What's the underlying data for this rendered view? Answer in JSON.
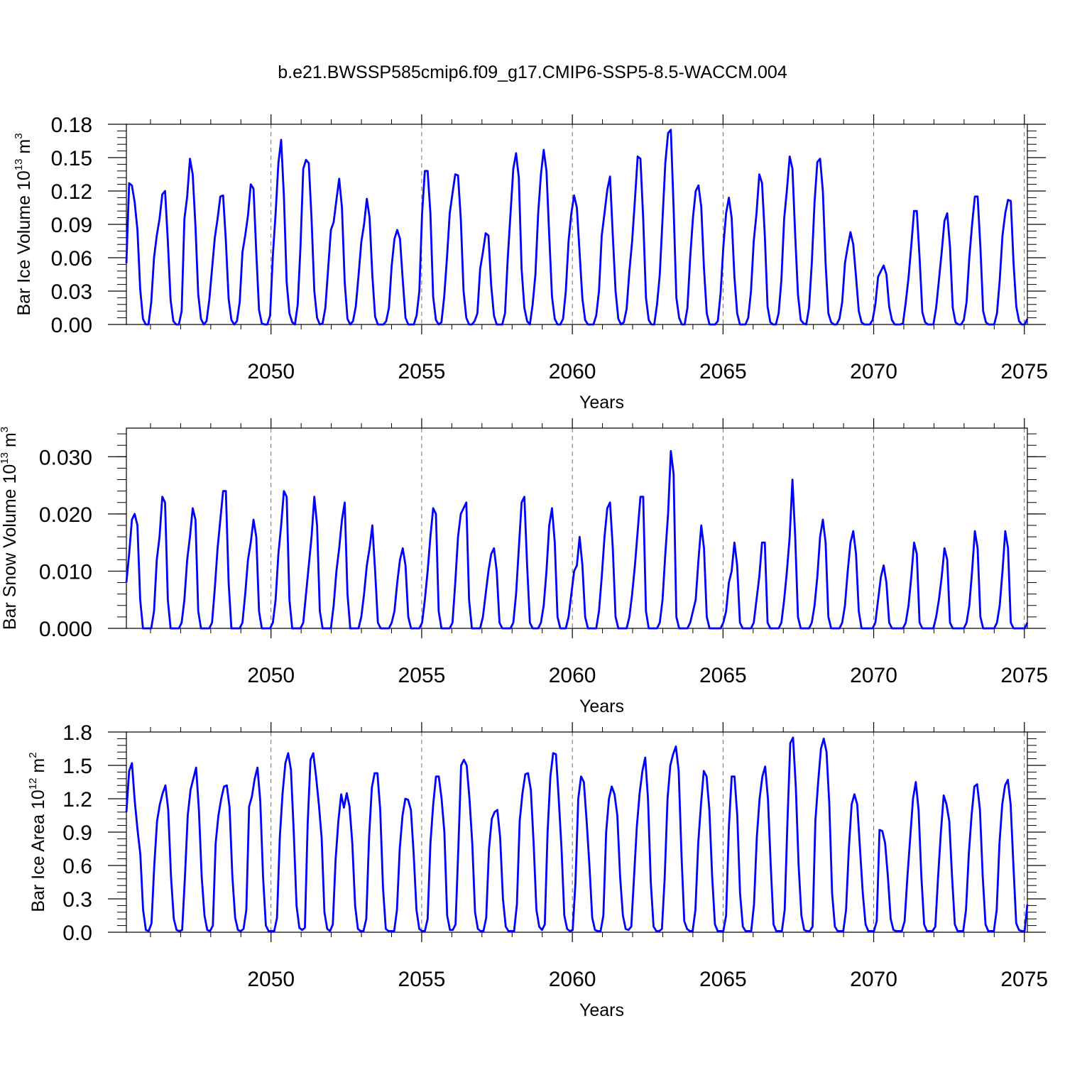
{
  "chart_data": {
    "title": "b.e21.BWSSP585cmip6.f09_g17.CMIP6-SSP5-8.5-WACCM.004",
    "type": "line",
    "x_start": 2045.2,
    "x_end": 2075.1,
    "xlim": [
      2045.2,
      2075.1
    ],
    "x_ticks": [
      "2050",
      "2055",
      "2060",
      "2065",
      "2070",
      "2075"
    ],
    "line_color": "#0000ff",
    "panels": [
      {
        "ylabel": "Bar Ice Volume 10",
        "ylabel_exp": "13",
        "ylabel_unit": " m",
        "ylabel_unit_exp": "3",
        "xlabel": "Years",
        "ylim": [
          0,
          0.18
        ],
        "y_ticks": [
          "0.00",
          "0.03",
          "0.06",
          "0.09",
          "0.12",
          "0.15",
          "0.18"
        ],
        "values": [
          0.055,
          0.127,
          0.125,
          0.11,
          0.085,
          0.032,
          0.005,
          0,
          0,
          0.02,
          0.06,
          0.08,
          0.095,
          0.117,
          0.12,
          0.075,
          0.022,
          0.003,
          0,
          0,
          0.012,
          0.095,
          0.115,
          0.149,
          0.135,
          0.088,
          0.027,
          0.005,
          0,
          0.003,
          0.022,
          0.05,
          0.078,
          0.095,
          0.115,
          0.116,
          0.075,
          0.023,
          0.004,
          0,
          0.003,
          0.02,
          0.065,
          0.08,
          0.098,
          0.126,
          0.122,
          0.065,
          0.013,
          0.001,
          0,
          0,
          0.008,
          0.062,
          0.1,
          0.145,
          0.166,
          0.115,
          0.038,
          0.01,
          0.002,
          0,
          0.018,
          0.07,
          0.14,
          0.148,
          0.145,
          0.095,
          0.03,
          0.006,
          0,
          0.001,
          0.015,
          0.05,
          0.085,
          0.092,
          0.112,
          0.131,
          0.105,
          0.038,
          0.005,
          0,
          0.003,
          0.016,
          0.044,
          0.074,
          0.09,
          0.113,
          0.096,
          0.044,
          0.007,
          0,
          0,
          0,
          0.003,
          0.015,
          0.053,
          0.077,
          0.085,
          0.077,
          0.04,
          0.006,
          0,
          0,
          0,
          0.008,
          0.03,
          0.1,
          0.138,
          0.138,
          0.1,
          0.025,
          0.004,
          0,
          0.002,
          0.025,
          0.06,
          0.1,
          0.118,
          0.135,
          0.134,
          0.095,
          0.03,
          0.006,
          0,
          0,
          0.003,
          0.01,
          0.05,
          0.065,
          0.082,
          0.08,
          0.035,
          0.008,
          0,
          0,
          0,
          0.01,
          0.06,
          0.1,
          0.14,
          0.154,
          0.132,
          0.05,
          0.015,
          0.003,
          0,
          0.018,
          0.045,
          0.1,
          0.135,
          0.157,
          0.138,
          0.08,
          0.025,
          0.005,
          0,
          0,
          0.005,
          0.03,
          0.075,
          0.1,
          0.116,
          0.105,
          0.064,
          0.023,
          0.004,
          0,
          0,
          0,
          0.008,
          0.03,
          0.08,
          0.1,
          0.121,
          0.133,
          0.08,
          0.03,
          0.005,
          0,
          0.002,
          0.014,
          0.048,
          0.075,
          0.112,
          0.151,
          0.149,
          0.095,
          0.024,
          0.004,
          0,
          0,
          0.018,
          0.045,
          0.095,
          0.145,
          0.172,
          0.175,
          0.105,
          0.024,
          0.006,
          0,
          0,
          0.015,
          0.06,
          0.096,
          0.12,
          0.125,
          0.106,
          0.05,
          0.01,
          0,
          0,
          0,
          0.003,
          0.028,
          0.07,
          0.1,
          0.114,
          0.096,
          0.043,
          0.01,
          0,
          0,
          0,
          0.006,
          0.03,
          0.075,
          0.1,
          0.135,
          0.127,
          0.08,
          0.016,
          0.002,
          0,
          0,
          0.01,
          0.04,
          0.095,
          0.121,
          0.151,
          0.14,
          0.08,
          0.027,
          0.004,
          0.001,
          0,
          0.015,
          0.055,
          0.11,
          0.146,
          0.149,
          0.12,
          0.055,
          0.01,
          0.002,
          0,
          0,
          0.005,
          0.02,
          0.055,
          0.07,
          0.083,
          0.072,
          0.043,
          0.012,
          0.002,
          0,
          0,
          0,
          0.004,
          0.018,
          0.043,
          0.048,
          0.053,
          0.045,
          0.016,
          0.004,
          0,
          0,
          0,
          0.001,
          0.02,
          0.042,
          0.071,
          0.102,
          0.102,
          0.06,
          0.011,
          0.002,
          0,
          0,
          0,
          0.015,
          0.04,
          0.065,
          0.093,
          0.1,
          0.07,
          0.015,
          0.002,
          0,
          0,
          0.004,
          0.02,
          0.06,
          0.09,
          0.115,
          0.115,
          0.07,
          0.012,
          0.002,
          0,
          0,
          0,
          0.01,
          0.04,
          0.08,
          0.1,
          0.112,
          0.111,
          0.055,
          0.016,
          0.003,
          0,
          0,
          0.005
        ]
      },
      {
        "ylabel": "Bar Snow Volume 10",
        "ylabel_exp": "13",
        "ylabel_unit": " m",
        "ylabel_unit_exp": "3",
        "xlabel": "Years",
        "ylim": [
          0,
          0.035
        ],
        "y_ticks": [
          "0.000",
          "0.010",
          "0.020",
          "0.030"
        ],
        "values": [
          0.008,
          0.013,
          0.019,
          0.02,
          0.018,
          0.005,
          0,
          0,
          0,
          0,
          0.003,
          0.012,
          0.016,
          0.023,
          0.022,
          0.005,
          0,
          0,
          0,
          0,
          0.001,
          0.005,
          0.012,
          0.016,
          0.021,
          0.019,
          0.003,
          0,
          0,
          0,
          0,
          0.001,
          0.007,
          0.014,
          0.019,
          0.024,
          0.024,
          0.008,
          0,
          0,
          0,
          0,
          0.001,
          0.006,
          0.012,
          0.015,
          0.019,
          0.016,
          0.003,
          0,
          0,
          0,
          0,
          0.001,
          0.005,
          0.013,
          0.018,
          0.024,
          0.023,
          0.005,
          0,
          0,
          0,
          0,
          0.001,
          0.006,
          0.011,
          0.016,
          0.023,
          0.018,
          0.003,
          0,
          0,
          0,
          0,
          0.004,
          0.01,
          0.014,
          0.019,
          0.022,
          0.006,
          0,
          0,
          0,
          0,
          0.002,
          0.006,
          0.011,
          0.014,
          0.018,
          0.01,
          0.001,
          0,
          0,
          0,
          0,
          0.001,
          0.003,
          0.008,
          0.012,
          0.014,
          0.011,
          0.002,
          0,
          0,
          0,
          0,
          0.001,
          0.005,
          0.01,
          0.016,
          0.021,
          0.02,
          0.003,
          0,
          0,
          0,
          0,
          0.001,
          0.008,
          0.016,
          0.02,
          0.021,
          0.022,
          0.005,
          0,
          0,
          0,
          0,
          0.002,
          0.006,
          0.01,
          0.013,
          0.014,
          0.01,
          0.001,
          0,
          0,
          0,
          0,
          0.001,
          0.006,
          0.014,
          0.022,
          0.023,
          0.011,
          0.001,
          0,
          0,
          0,
          0.001,
          0.004,
          0.01,
          0.018,
          0.021,
          0.015,
          0.002,
          0,
          0,
          0,
          0.002,
          0.006,
          0.01,
          0.011,
          0.016,
          0.011,
          0.002,
          0,
          0,
          0,
          0,
          0.003,
          0.009,
          0.016,
          0.021,
          0.022,
          0.014,
          0.002,
          0,
          0,
          0,
          0,
          0.002,
          0.006,
          0.011,
          0.017,
          0.023,
          0.023,
          0.003,
          0,
          0,
          0,
          0,
          0.001,
          0.005,
          0.013,
          0.02,
          0.031,
          0.027,
          0.002,
          0,
          0,
          0,
          0,
          0.001,
          0.003,
          0.005,
          0.012,
          0.018,
          0.014,
          0.002,
          0,
          0,
          0,
          0,
          0,
          0.001,
          0.003,
          0.008,
          0.01,
          0.015,
          0.011,
          0.001,
          0,
          0,
          0,
          0,
          0.001,
          0.005,
          0.009,
          0.015,
          0.015,
          0.001,
          0,
          0,
          0,
          0,
          0.001,
          0.005,
          0.01,
          0.016,
          0.026,
          0.016,
          0.002,
          0,
          0,
          0,
          0,
          0.001,
          0.004,
          0.009,
          0.016,
          0.019,
          0.015,
          0.002,
          0,
          0,
          0,
          0,
          0.001,
          0.004,
          0.01,
          0.015,
          0.017,
          0.013,
          0.003,
          0,
          0,
          0,
          0,
          0,
          0.001,
          0.005,
          0.009,
          0.011,
          0.008,
          0.001,
          0,
          0,
          0,
          0,
          0,
          0.001,
          0.004,
          0.009,
          0.015,
          0.013,
          0.001,
          0,
          0,
          0,
          0,
          0,
          0.002,
          0.005,
          0.009,
          0.014,
          0.012,
          0.001,
          0,
          0,
          0,
          0,
          0,
          0.001,
          0.004,
          0.01,
          0.017,
          0.014,
          0.002,
          0,
          0,
          0,
          0,
          0,
          0.001,
          0.004,
          0.01,
          0.017,
          0.014,
          0.001,
          0,
          0,
          0,
          0,
          0,
          0.001
        ]
      },
      {
        "ylabel": "Bar Ice Area 10",
        "ylabel_exp": "12",
        "ylabel_unit": " m",
        "ylabel_unit_exp": "2",
        "xlabel": "Years",
        "ylim": [
          0,
          1.8
        ],
        "y_ticks": [
          "0.0",
          "0.3",
          "0.6",
          "0.9",
          "1.2",
          "1.5",
          "1.8"
        ],
        "values": [
          1.08,
          1.45,
          1.52,
          1.18,
          0.92,
          0.7,
          0.2,
          0.02,
          0.01,
          0.08,
          0.6,
          1.0,
          1.15,
          1.25,
          1.32,
          1.1,
          0.5,
          0.12,
          0.02,
          0.01,
          0.02,
          0.5,
          1.05,
          1.28,
          1.38,
          1.48,
          1.1,
          0.5,
          0.15,
          0.02,
          0.01,
          0.06,
          0.8,
          1.05,
          1.2,
          1.31,
          1.32,
          1.12,
          0.5,
          0.13,
          0.02,
          0.01,
          0.03,
          0.2,
          1.13,
          1.22,
          1.38,
          1.48,
          1.18,
          0.5,
          0.06,
          0.01,
          0.01,
          0.01,
          0.13,
          0.85,
          1.25,
          1.52,
          1.61,
          1.46,
          0.9,
          0.24,
          0.04,
          0.02,
          0.04,
          0.98,
          1.55,
          1.61,
          1.4,
          1.15,
          0.85,
          0.18,
          0.03,
          0.01,
          0.07,
          0.65,
          1.0,
          1.24,
          1.12,
          1.25,
          1.13,
          0.8,
          0.24,
          0.03,
          0.01,
          0.01,
          0.12,
          0.85,
          1.3,
          1.43,
          1.43,
          1.1,
          0.4,
          0.03,
          0.01,
          0.01,
          0.01,
          0.2,
          0.75,
          1.05,
          1.2,
          1.19,
          1.1,
          0.7,
          0.2,
          0.03,
          0.01,
          0.01,
          0.12,
          0.8,
          1.15,
          1.4,
          1.4,
          1.2,
          0.9,
          0.15,
          0.02,
          0.02,
          0.07,
          0.75,
          1.5,
          1.55,
          1.5,
          1.2,
          0.8,
          0.18,
          0.03,
          0.01,
          0.01,
          0.13,
          0.75,
          1.02,
          1.08,
          1.1,
          0.85,
          0.3,
          0.05,
          0.01,
          0.01,
          0.01,
          0.25,
          1.0,
          1.25,
          1.42,
          1.43,
          1.28,
          0.8,
          0.2,
          0.05,
          0.02,
          0.07,
          0.9,
          1.4,
          1.61,
          1.6,
          1.2,
          0.75,
          0.15,
          0.03,
          0.01,
          0.02,
          0.45,
          1.2,
          1.4,
          1.35,
          1.0,
          0.6,
          0.13,
          0.02,
          0.01,
          0.01,
          0.15,
          0.9,
          1.2,
          1.31,
          1.24,
          1.05,
          0.5,
          0.15,
          0.03,
          0.02,
          0.05,
          0.5,
          0.95,
          1.25,
          1.45,
          1.57,
          1.2,
          0.45,
          0.05,
          0.01,
          0.01,
          0.03,
          0.5,
          1.2,
          1.5,
          1.6,
          1.67,
          1.45,
          0.7,
          0.1,
          0.03,
          0.01,
          0.01,
          0.2,
          0.8,
          1.15,
          1.45,
          1.4,
          1.1,
          0.5,
          0.07,
          0.01,
          0.01,
          0.01,
          0.15,
          0.95,
          1.4,
          1.4,
          1.05,
          0.35,
          0.05,
          0.01,
          0.01,
          0.01,
          0.25,
          0.85,
          1.2,
          1.4,
          1.49,
          1.2,
          0.6,
          0.07,
          0.01,
          0.01,
          0.01,
          0.2,
          1.0,
          1.7,
          1.75,
          1.3,
          0.6,
          0.15,
          0.02,
          0.01,
          0.01,
          0.05,
          1.0,
          1.35,
          1.65,
          1.74,
          1.62,
          1.15,
          0.35,
          0.05,
          0.01,
          0.01,
          0.01,
          0.2,
          0.75,
          1.15,
          1.24,
          1.15,
          0.75,
          0.35,
          0.07,
          0.01,
          0.01,
          0.01,
          0.1,
          0.92,
          0.91,
          0.8,
          0.5,
          0.12,
          0.02,
          0.01,
          0.01,
          0.01,
          0.1,
          0.5,
          0.85,
          1.2,
          1.35,
          1.1,
          0.5,
          0.07,
          0.01,
          0.01,
          0.01,
          0.05,
          0.5,
          0.9,
          1.23,
          1.15,
          1.0,
          0.5,
          0.07,
          0.01,
          0.01,
          0.01,
          0.2,
          0.7,
          1.05,
          1.31,
          1.33,
          1.1,
          0.5,
          0.07,
          0.01,
          0.01,
          0.01,
          0.2,
          0.8,
          1.15,
          1.32,
          1.37,
          1.15,
          0.6,
          0.08,
          0.02,
          0.01,
          0.01,
          0.25
        ]
      }
    ]
  }
}
